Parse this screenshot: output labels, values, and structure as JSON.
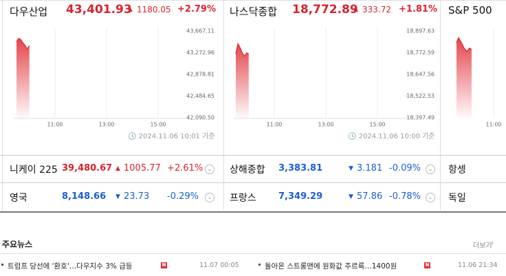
{
  "panels": [
    {
      "name": "다우산업",
      "price": "43,401.93",
      "change": "1180.05",
      "rate": "+2.79%",
      "chart": {
        "type": "area",
        "color": "#e0313a",
        "values": [
          43470,
          43530,
          43510,
          43450,
          43400,
          43340,
          43400
        ],
        "ylim": [
          42090.5,
          43667.11
        ],
        "yticks": [
          {
            "value": 43667.11,
            "label": "43,667.11"
          },
          {
            "value": 43272.96,
            "label": "43,272.96"
          },
          {
            "value": 42878.81,
            "label": "42,878.81"
          },
          {
            "value": 42484.65,
            "label": "42,484.65"
          },
          {
            "value": 42090.5,
            "label": "42,090.50"
          }
        ],
        "xticks": [
          "11:00",
          "13:00",
          "15:00"
        ]
      },
      "timestamp": "2024.11.06 10:01",
      "timestamp_suffix": "기준"
    },
    {
      "name": "나스닥종합",
      "price": "18,772.89",
      "change": "333.72",
      "rate": "+1.81%",
      "chart": {
        "type": "area",
        "color": "#e0313a",
        "values": [
          18765,
          18823,
          18800,
          18770,
          18752,
          18770,
          18765
        ],
        "ylim": [
          18397.49,
          18897.63
        ],
        "yticks": [
          {
            "value": 18897.63,
            "label": "18,897.63"
          },
          {
            "value": 18772.59,
            "label": "18,772.59"
          },
          {
            "value": 18647.56,
            "label": "18,647.56"
          },
          {
            "value": 18522.53,
            "label": "18,522.53"
          },
          {
            "value": 18397.49,
            "label": "18,397.49"
          }
        ],
        "xticks": [
          "11:00",
          "13:00",
          "15:00"
        ]
      },
      "timestamp": "2024.11.06 10:00",
      "timestamp_suffix": "기준"
    },
    {
      "name": "S&P 500",
      "chart": {
        "xticks": [
          "11:00"
        ]
      }
    }
  ],
  "indices": [
    [
      {
        "name": "니케이 225",
        "price": "39,480.67",
        "change": "1005.77",
        "rate": "+2.61%"
      },
      {
        "name": "상해종합",
        "price": "3,383.81",
        "change": "3.181",
        "rate": "-0.09%"
      },
      {
        "name": "항셍"
      }
    ],
    [
      {
        "name": "영국",
        "price": "8,148.66",
        "change": "23.73",
        "rate": "-0.29%"
      },
      {
        "name": "프랑스",
        "price": "7,349.29",
        "change": "57.86",
        "rate": "-0.78%"
      },
      {
        "name": "독일"
      }
    ]
  ],
  "news": {
    "title": "주요뉴스",
    "more": "더보기",
    "items": [
      {
        "text": "트럼프 당선에 '환호'…다우지수 3% 급등",
        "time": "11.07 00:05"
      },
      {
        "text": "돌아온 스트롱맨에 원화값 주르륵…1400원",
        "time": "11.06 21:34"
      }
    ]
  }
}
